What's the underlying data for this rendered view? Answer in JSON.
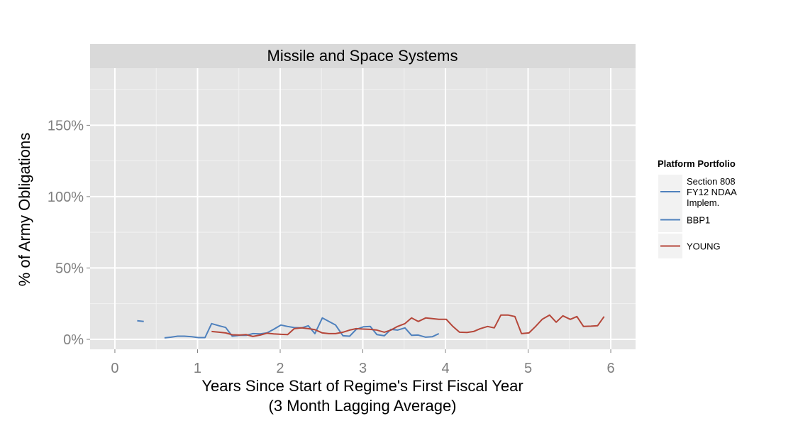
{
  "chart_data": {
    "type": "line",
    "title": "Missile and Space Systems",
    "xlabel_lines": [
      "Years Since Start of Regime's First Fiscal Year",
      "(3 Month Lagging Average)"
    ],
    "ylabel": "% of Army Obligations",
    "xlim": [
      -0.3,
      6.3
    ],
    "ylim": [
      -0.07,
      1.9
    ],
    "x_ticks": [
      0,
      1,
      2,
      3,
      4,
      5,
      6
    ],
    "x_tick_labels": [
      "0",
      "1",
      "2",
      "3",
      "4",
      "5",
      "6"
    ],
    "y_ticks": [
      0,
      0.5,
      1.0,
      1.5
    ],
    "y_tick_labels": [
      "0%",
      "50%",
      "100%",
      "150%"
    ],
    "grid": true,
    "legend": {
      "title": "Platform Portfolio",
      "placement": "right",
      "entries": [
        {
          "label_lines": [
            "Section 808",
            "FY12 NDAA",
            "Implem."
          ],
          "color": "#4f81bd"
        },
        {
          "label_lines": [
            "BBP1"
          ],
          "color": "#4f81bd"
        },
        {
          "label_lines": [
            "YOUNG"
          ],
          "color": "#b5473a"
        }
      ]
    },
    "series": [
      {
        "name": "Section 808 FY12 NDAA Implem.",
        "color": "#4f81bd",
        "x": [
          0.27,
          0.35
        ],
        "y": [
          0.13,
          0.125
        ]
      },
      {
        "name": "BBP1",
        "color": "#4f81bd",
        "x": [
          0.6,
          0.68,
          0.76,
          0.84,
          0.93,
          1.01,
          1.09,
          1.17,
          1.26,
          1.34,
          1.42,
          1.51,
          1.59,
          1.67,
          1.76,
          1.84,
          1.92,
          2.01,
          2.09,
          2.17,
          2.26,
          2.34,
          2.42,
          2.51,
          2.59,
          2.67,
          2.76,
          2.84,
          2.92,
          3.01,
          3.09,
          3.17,
          3.26,
          3.34,
          3.42,
          3.51,
          3.59,
          3.67,
          3.76,
          3.84,
          3.92
        ],
        "y": [
          0.01,
          0.015,
          0.022,
          0.022,
          0.018,
          0.012,
          0.012,
          0.11,
          0.095,
          0.083,
          0.022,
          0.028,
          0.028,
          0.04,
          0.038,
          0.045,
          0.07,
          0.1,
          0.09,
          0.082,
          0.08,
          0.095,
          0.04,
          0.15,
          0.125,
          0.1,
          0.025,
          0.022,
          0.07,
          0.088,
          0.09,
          0.033,
          0.025,
          0.07,
          0.065,
          0.08,
          0.028,
          0.03,
          0.015,
          0.018,
          0.04
        ]
      },
      {
        "name": "YOUNG",
        "color": "#b5473a",
        "x": [
          1.17,
          1.26,
          1.34,
          1.42,
          1.51,
          1.59,
          1.67,
          1.76,
          1.84,
          1.92,
          2.01,
          2.09,
          2.17,
          2.26,
          2.34,
          2.42,
          2.51,
          2.59,
          2.67,
          2.76,
          2.84,
          2.92,
          3.01,
          3.09,
          3.17,
          3.26,
          3.34,
          3.42,
          3.51,
          3.59,
          3.67,
          3.76,
          3.84,
          3.92,
          4.01,
          4.09,
          4.17,
          4.26,
          4.34,
          4.42,
          4.51,
          4.59,
          4.67,
          4.76,
          4.84,
          4.92,
          5.01,
          5.09,
          5.17,
          5.26,
          5.34,
          5.42,
          5.51,
          5.59,
          5.67,
          5.76,
          5.84,
          5.92
        ],
        "y": [
          0.055,
          0.05,
          0.045,
          0.032,
          0.03,
          0.033,
          0.02,
          0.03,
          0.043,
          0.038,
          0.035,
          0.033,
          0.075,
          0.08,
          0.075,
          0.068,
          0.045,
          0.04,
          0.04,
          0.05,
          0.065,
          0.075,
          0.072,
          0.07,
          0.065,
          0.05,
          0.065,
          0.09,
          0.11,
          0.15,
          0.125,
          0.15,
          0.145,
          0.14,
          0.14,
          0.09,
          0.05,
          0.048,
          0.055,
          0.075,
          0.09,
          0.08,
          0.17,
          0.17,
          0.16,
          0.04,
          0.045,
          0.09,
          0.14,
          0.17,
          0.12,
          0.165,
          0.14,
          0.16,
          0.09,
          0.092,
          0.095,
          0.16
        ]
      }
    ]
  }
}
